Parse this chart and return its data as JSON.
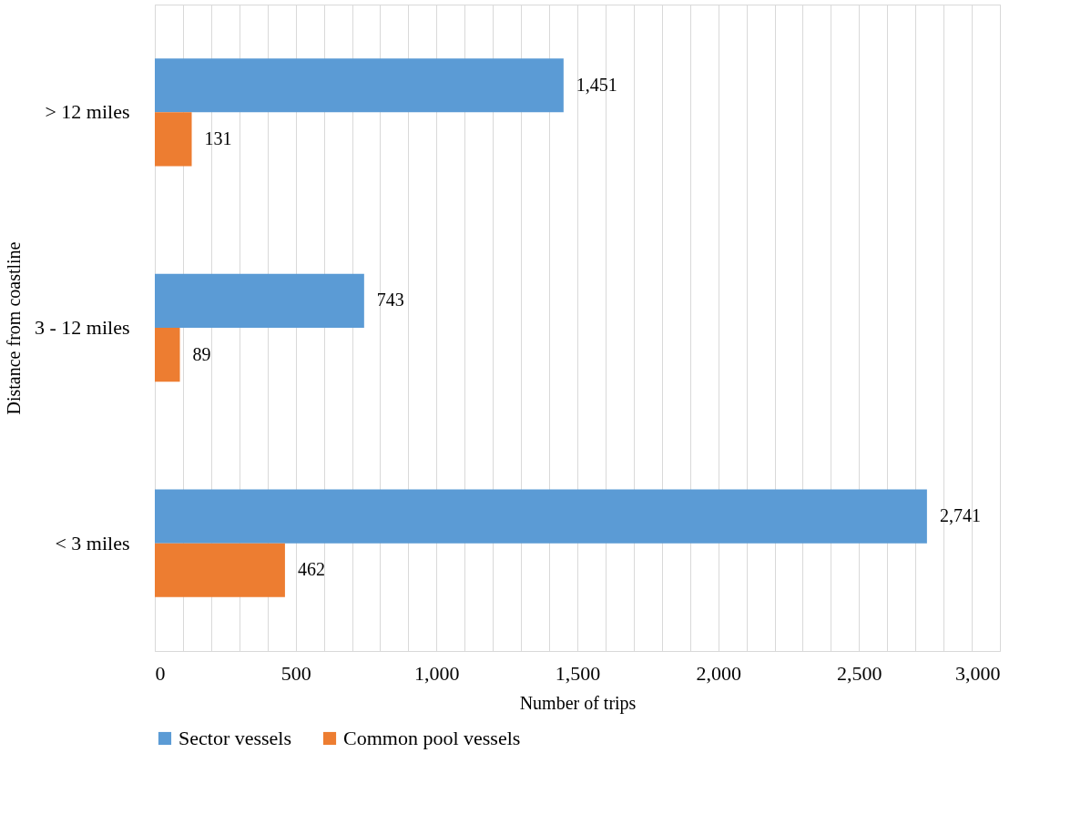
{
  "chart_data": {
    "type": "bar",
    "orientation": "horizontal",
    "xlabel": "Number of trips",
    "ylabel": "Distance from coastline",
    "categories": [
      "> 12 miles",
      "3 - 12 miles",
      "< 3 miles"
    ],
    "series": [
      {
        "name": "Sector vessels",
        "color": "#5b9bd5",
        "values": [
          1451,
          743,
          2741
        ],
        "value_labels": [
          "1,451",
          "743",
          "2,741"
        ]
      },
      {
        "name": "Common pool vessels",
        "color": "#ed7d31",
        "values": [
          131,
          89,
          462
        ],
        "value_labels": [
          "131",
          "89",
          "462"
        ]
      }
    ],
    "xlim": [
      0,
      3000
    ],
    "xticks": [
      0,
      {
        "value": 100,
        "label": null
      },
      {
        "value": 200,
        "label": null
      },
      {
        "value": 300,
        "label": null
      },
      {
        "value": 400,
        "label": null
      },
      500,
      {
        "value": 600,
        "label": null
      },
      {
        "value": 700,
        "label": null
      },
      {
        "value": 800,
        "label": null
      },
      {
        "value": 900,
        "label": null
      },
      {
        "value": 1000,
        "label": "1,000"
      },
      {
        "value": 1100,
        "label": null
      },
      {
        "value": 1200,
        "label": null
      },
      {
        "value": 1300,
        "label": null
      },
      {
        "value": 1400,
        "label": null
      },
      {
        "value": 1500,
        "label": "1,500"
      },
      {
        "value": 1600,
        "label": null
      },
      {
        "value": 1700,
        "label": null
      },
      {
        "value": 1800,
        "label": null
      },
      {
        "value": 1900,
        "label": null
      },
      {
        "value": 2000,
        "label": "2,000"
      },
      {
        "value": 2100,
        "label": null
      },
      {
        "value": 2200,
        "label": null
      },
      {
        "value": 2300,
        "label": null
      },
      {
        "value": 2400,
        "label": null
      },
      {
        "value": 2500,
        "label": "2,500"
      },
      {
        "value": 2600,
        "label": null
      },
      {
        "value": 2700,
        "label": null
      },
      {
        "value": 2800,
        "label": null
      },
      {
        "value": 2900,
        "label": null
      },
      {
        "value": 3000,
        "label": "3,000"
      }
    ],
    "grid": "x",
    "legend": "bottom",
    "data_labels": true
  }
}
